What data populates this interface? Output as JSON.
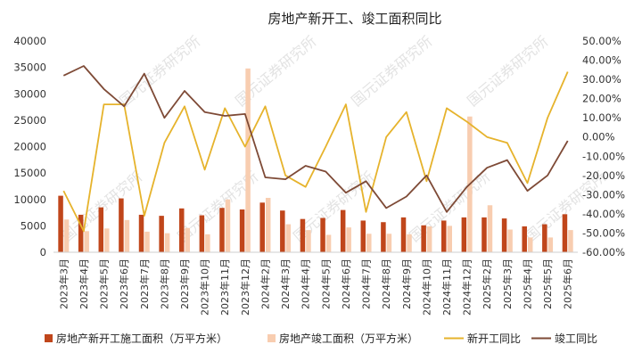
{
  "chart_data": {
    "type": "bar",
    "title": "房地产新开工、竣工面积同比",
    "categories": [
      "2023年3月",
      "2023年4月",
      "2023年5月",
      "2023年6月",
      "2023年7月",
      "2023年8月",
      "2023年9月",
      "2023年10月",
      "2023年11月",
      "2023年12月",
      "2024年2月",
      "2024年3月",
      "2024年4月",
      "2024年5月",
      "2024年6月",
      "2024年7月",
      "2024年8月",
      "2024年9月",
      "2024年10月",
      "2024年11月",
      "2024年12月",
      "2025年2月",
      "2025年3月",
      "2025年4月",
      "2025年5月",
      "2025年6月"
    ],
    "y_left": {
      "min": 0,
      "max": 40000,
      "step": 5000,
      "tick_labels": [
        "0",
        "5000",
        "10000",
        "15000",
        "20000",
        "25000",
        "30000",
        "35000",
        "40000"
      ]
    },
    "y_right": {
      "min": -60,
      "max": 50,
      "step": 10,
      "tick_labels": [
        "-60.00%",
        "-50.00%",
        "-40.00%",
        "-30.00%",
        "-20.00%",
        "-10.00%",
        "0.00%",
        "10.00%",
        "20.00%",
        "30.00%",
        "40.00%",
        "50.00%"
      ]
    },
    "series": [
      {
        "name": "房地产新开工施工面积（万平方米）",
        "kind": "bar",
        "axis": "left",
        "color": "#C0461B",
        "values": [
          10700,
          7100,
          8500,
          10200,
          7100,
          6900,
          8300,
          7000,
          8400,
          8100,
          9400,
          7900,
          6300,
          6500,
          8000,
          6000,
          5700,
          6600,
          5100,
          6000,
          6600,
          6600,
          6400,
          4900,
          5300,
          7200
        ]
      },
      {
        "name": "房地产竣工面积（万平方米）",
        "kind": "bar",
        "axis": "left",
        "color": "#F8CDB0",
        "values": [
          6200,
          4000,
          4500,
          6100,
          3900,
          3600,
          4600,
          3400,
          10000,
          34800,
          10300,
          5300,
          4200,
          3300,
          4700,
          3500,
          3500,
          3400,
          4900,
          5000,
          25700,
          8900,
          4300,
          2800,
          2800,
          4200
        ]
      },
      {
        "name": "新开工同比",
        "kind": "line",
        "axis": "right",
        "color": "#E6B32C",
        "values": [
          -28,
          -49,
          17,
          17,
          -41,
          -3,
          16,
          -17,
          15,
          -5,
          16,
          -20,
          -26,
          -5,
          17,
          -39,
          0,
          13,
          -23,
          15,
          8,
          0,
          -3,
          -24,
          10,
          34
        ]
      },
      {
        "name": "竣工同比",
        "kind": "line",
        "axis": "right",
        "color": "#7E4A36",
        "values": [
          32,
          37,
          25,
          16,
          33,
          10,
          24,
          13,
          11,
          12,
          -21,
          -22,
          -15,
          -18,
          -29,
          -23,
          -37,
          -31,
          -20,
          -39,
          -26,
          -16,
          -12,
          -28,
          -20,
          -2
        ]
      }
    ],
    "legend": {
      "position": "bottom"
    },
    "grid": false,
    "watermark": "国元证券研究所"
  }
}
